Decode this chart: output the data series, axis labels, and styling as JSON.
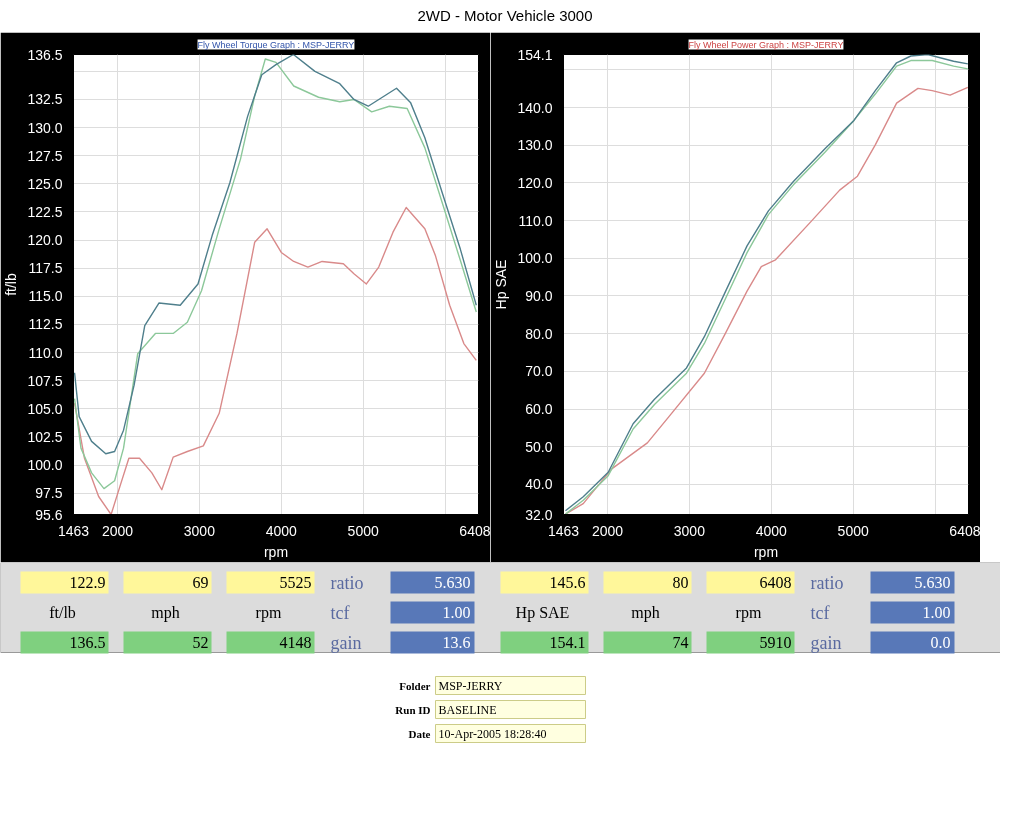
{
  "chart_data": [
    {
      "type": "line",
      "title": "2WD - Motor Vehicle 3000",
      "subtitle": "Fly Wheel Torque Graph : MSP-JERRY",
      "xlabel": "rpm",
      "ylabel": "ft/lb",
      "grid": true,
      "xlim": [
        1463,
        6408
      ],
      "xticks": [
        1463,
        2000,
        3000,
        4000,
        5000,
        {
          "value": 6000,
          "label": null
        },
        6408
      ],
      "ylim": [
        95.6,
        136.5
      ],
      "yticks": [
        95.6,
        97.5,
        {
          "value": 100,
          "label": "100.0"
        },
        102.5,
        {
          "value": 105,
          "label": "105.0"
        },
        107.5,
        {
          "value": 110,
          "label": "110.0"
        },
        112.5,
        {
          "value": 115,
          "label": "115.0"
        },
        117.5,
        {
          "value": 120,
          "label": "120.0"
        },
        122.5,
        {
          "value": 125,
          "label": "125.0"
        },
        127.5,
        {
          "value": 130,
          "label": "130.0"
        },
        132.5,
        {
          "value": 135,
          "label": null
        },
        136.5
      ],
      "series": [
        {
          "color": "#d98a8a",
          "x": [
            1476,
            1597,
            1770,
            1922,
            2030,
            2139,
            2269,
            2420,
            2541,
            2680,
            2853,
            3048,
            3242,
            3459,
            3675,
            3827,
            4000,
            4152,
            4325,
            4498,
            4758,
            4887,
            5039,
            5190,
            5364,
            5525,
            5753,
            5883,
            6056,
            6229,
            6381
          ],
          "values": [
            105.5,
            100.6,
            97.2,
            95.6,
            98.1,
            100.6,
            100.6,
            99.3,
            97.8,
            100.7,
            101.2,
            101.7,
            104.6,
            111.7,
            119.8,
            121.0,
            118.9,
            118.1,
            117.6,
            118.1,
            117.9,
            117.0,
            116.1,
            117.6,
            120.7,
            122.9,
            121.0,
            118.6,
            114.2,
            110.8,
            109.3
          ]
        },
        {
          "color": "#8cc89a",
          "x": [
            1476,
            1554,
            1684,
            1835,
            1965,
            2074,
            2247,
            2463,
            2680,
            2853,
            3026,
            3242,
            3502,
            3675,
            3805,
            3935,
            4152,
            4455,
            4714,
            4887,
            5104,
            5320,
            5537,
            5753,
            5970,
            6186,
            6381
          ],
          "values": [
            105.9,
            101.5,
            99.3,
            97.9,
            98.6,
            101.5,
            109.9,
            111.7,
            111.7,
            112.7,
            115.5,
            121.0,
            127.2,
            132.8,
            136.1,
            135.8,
            133.7,
            132.7,
            132.3,
            132.5,
            131.4,
            131.9,
            131.7,
            128.2,
            123.2,
            118.2,
            113.6
          ]
        },
        {
          "color": "#4f7f8c",
          "x": [
            1476,
            1532,
            1684,
            1857,
            1965,
            2074,
            2203,
            2333,
            2506,
            2766,
            2983,
            3156,
            3372,
            3589,
            3762,
            3935,
            4148,
            4411,
            4714,
            4887,
            5061,
            5234,
            5407,
            5580,
            5753,
            5970,
            6186,
            6381
          ],
          "values": [
            108.2,
            104.3,
            102.1,
            101.0,
            101.2,
            103.1,
            107.1,
            112.4,
            114.4,
            114.2,
            116.1,
            120.4,
            125.1,
            131.0,
            134.7,
            135.6,
            136.5,
            135.0,
            133.9,
            132.5,
            131.9,
            132.7,
            133.5,
            132.2,
            129.1,
            124.1,
            119.2,
            114.2
          ]
        }
      ]
    },
    {
      "type": "line",
      "subtitle": "Fly Wheel Power Graph : MSP-JERRY",
      "xlabel": "rpm",
      "ylabel": "Hp SAE",
      "grid": true,
      "xlim": [
        1463,
        6408
      ],
      "xticks": [
        1463,
        2000,
        3000,
        4000,
        5000,
        {
          "value": 6000,
          "label": null
        },
        6408
      ],
      "ylim": [
        32.0,
        154.1
      ],
      "yticks": [
        {
          "value": 32,
          "label": "32.0"
        },
        {
          "value": 40,
          "label": "40.0"
        },
        {
          "value": 50,
          "label": "50.0"
        },
        {
          "value": 60,
          "label": "60.0"
        },
        {
          "value": 70,
          "label": "70.0"
        },
        {
          "value": 80,
          "label": "80.0"
        },
        {
          "value": 90,
          "label": "90.0"
        },
        {
          "value": 100,
          "label": "100.0"
        },
        {
          "value": 110,
          "label": "110.0"
        },
        {
          "value": 120,
          "label": "120.0"
        },
        {
          "value": 130,
          "label": "130.0"
        },
        {
          "value": 140,
          "label": "140.0"
        },
        {
          "value": 150,
          "label": null
        },
        154.1
      ],
      "series": [
        {
          "color": "#d98a8a",
          "x": [
            1487,
            1704,
            2052,
            2487,
            2748,
            3183,
            3443,
            3704,
            3878,
            4052,
            4487,
            4835,
            5052,
            5270,
            5530,
            5791,
            5965,
            6183,
            6400
          ],
          "values": [
            32.1,
            34.9,
            44.1,
            51.0,
            57.9,
            69.5,
            80.2,
            91.3,
            97.8,
            99.6,
            109.8,
            118.1,
            121.8,
            130.1,
            141.2,
            145.1,
            144.5,
            143.3,
            145.4
          ]
        },
        {
          "color": "#8cc89a",
          "x": [
            1487,
            1704,
            2009,
            2313,
            2574,
            2965,
            3183,
            3443,
            3704,
            3965,
            4270,
            4661,
            5009,
            5270,
            5530,
            5704,
            5965,
            6226,
            6400
          ],
          "values": [
            32.1,
            35.8,
            42.3,
            54.7,
            61.2,
            69.5,
            77.4,
            89.4,
            101.5,
            111.6,
            119.5,
            128.3,
            136.6,
            143.6,
            151.0,
            152.5,
            152.5,
            151.0,
            150.3
          ]
        },
        {
          "color": "#4f7f8c",
          "x": [
            1487,
            1704,
            2009,
            2313,
            2574,
            2965,
            3183,
            3443,
            3704,
            3965,
            4270,
            4661,
            5009,
            5270,
            5530,
            5704,
            5910,
            6226,
            6400
          ],
          "values": [
            33.0,
            36.7,
            43.2,
            56.1,
            62.6,
            70.9,
            79.2,
            91.3,
            103.3,
            112.6,
            120.4,
            129.2,
            136.6,
            144.5,
            151.9,
            153.7,
            154.1,
            152.3,
            151.6
          ]
        }
      ]
    },
    {
      "type": "other",
      "annotations": [
        "122.9",
        "69",
        "5525",
        "ratio",
        "5.630",
        "ft/lb",
        "mph",
        "rpm",
        "tcf",
        "1.00",
        "136.5",
        "52",
        "4148",
        "gain",
        "13.6",
        "145.6",
        "80",
        "6408",
        "ratio",
        "5.630",
        "Hp SAE",
        "mph",
        "rpm",
        "tcf",
        "1.00",
        "154.1",
        "74",
        "5910",
        "gain",
        "0.0",
        "Folder",
        "MSP-JERRY",
        "Run ID",
        "BASELINE",
        "Date",
        "10-Apr-2005  18:28:40"
      ]
    }
  ]
}
